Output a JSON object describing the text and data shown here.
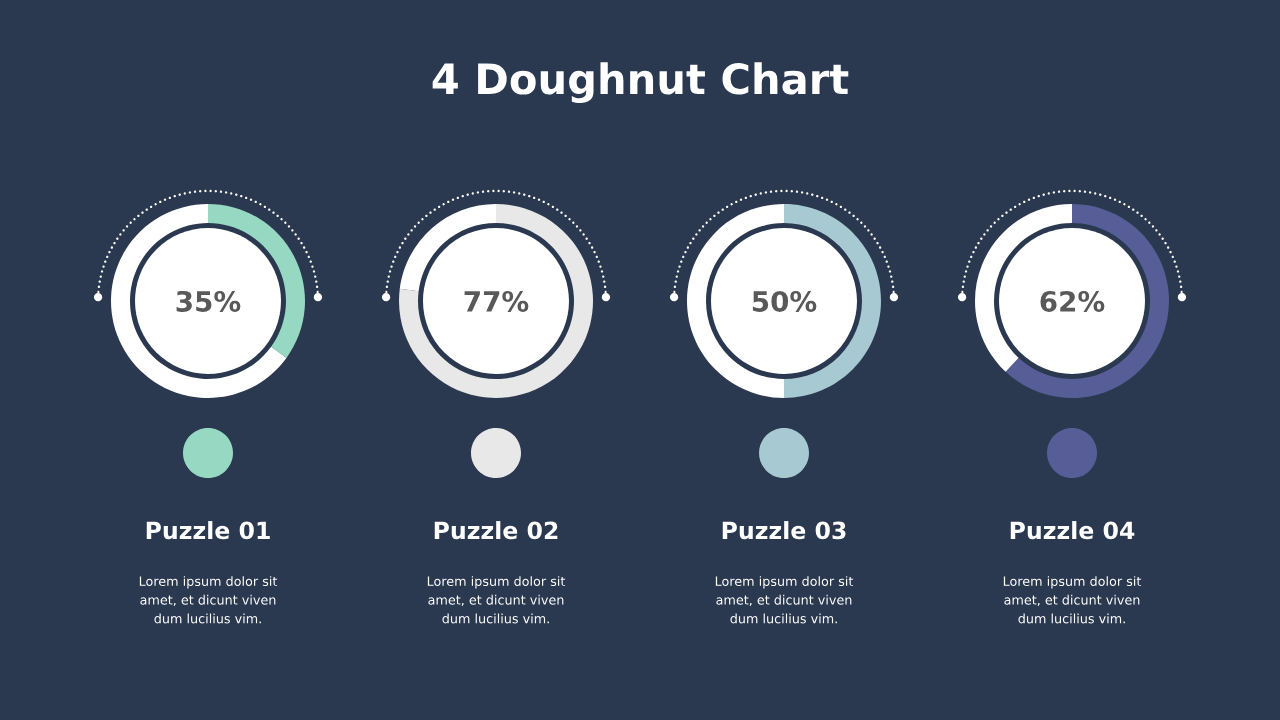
{
  "chart_data": [
    {
      "type": "other",
      "title": "4 Doughnut Chart"
    },
    {
      "type": "donut",
      "categories": [
        null,
        null
      ],
      "values": [
        35,
        65
      ],
      "colors": [
        "#97d8c3",
        "#ffffff"
      ],
      "value_labels": [
        "35%",
        null
      ],
      "xlabel": "Puzzle 01",
      "annotations": [
        "Lorem ipsum dolor sit\namet, et dicunt viven\ndum lucilius vim."
      ]
    },
    {
      "type": "donut",
      "categories": [
        null,
        null
      ],
      "values": [
        77,
        23
      ],
      "colors": [
        "#e8e8e8",
        "#ffffff"
      ],
      "value_labels": [
        "77%",
        null
      ],
      "xlabel": "Puzzle 02",
      "annotations": [
        "Lorem ipsum dolor sit\namet, et dicunt viven\ndum lucilius vim."
      ]
    },
    {
      "type": "donut",
      "categories": [
        null,
        null
      ],
      "values": [
        50,
        50
      ],
      "colors": [
        "#a6c9d2",
        "#ffffff"
      ],
      "value_labels": [
        "50%",
        null
      ],
      "xlabel": "Puzzle 03",
      "annotations": [
        "Lorem ipsum dolor sit\namet, et dicunt viven\ndum lucilius vim."
      ]
    },
    {
      "type": "donut",
      "categories": [
        null,
        null
      ],
      "values": [
        62,
        38
      ],
      "colors": [
        "#575d97",
        "#ffffff"
      ],
      "value_labels": [
        "62%",
        null
      ],
      "xlabel": "Puzzle 04",
      "annotations": [
        "Lorem ipsum dolor sit\namet, et dicunt viven\ndum lucilius vim."
      ]
    }
  ]
}
